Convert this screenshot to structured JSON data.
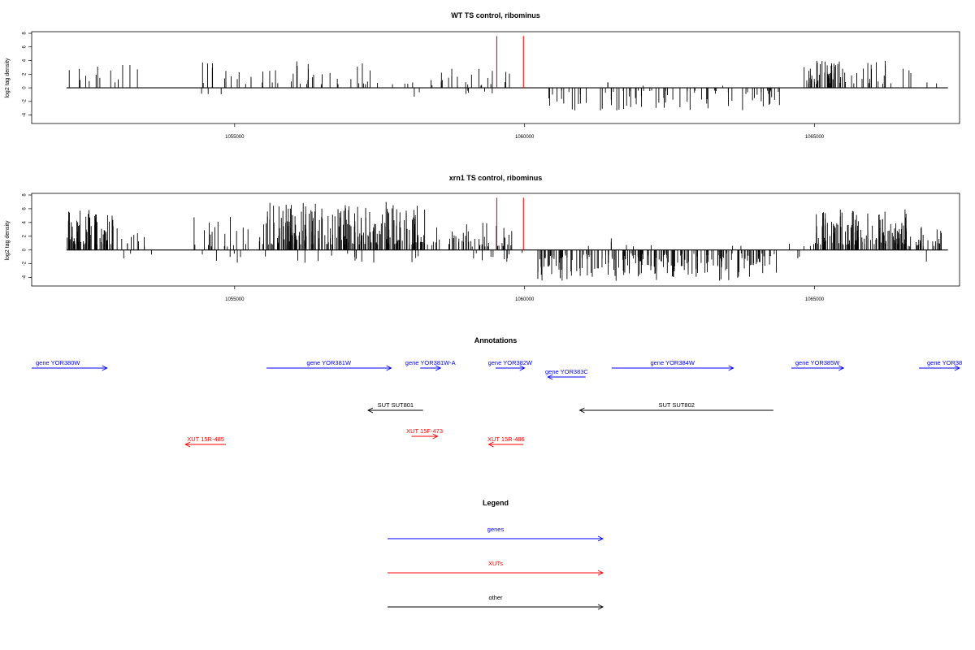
{
  "chart_data": [
    {
      "type": "bar",
      "title": "WT TS control, ribominus",
      "ylabel": "log2 tag density",
      "xlim": [
        1051500,
        1067500
      ],
      "ylim": [
        -5,
        8
      ],
      "yticks": [
        -4,
        -2,
        0,
        2,
        4,
        6,
        8
      ],
      "xticks": [
        1055000,
        1060000,
        1065000
      ],
      "xtick_labels": [
        "1055000",
        "1060000",
        "1065000"
      ],
      "bar_color": "#000000",
      "markers": [
        {
          "x": 1059520,
          "y": 7.6,
          "color": "#ff0000"
        },
        {
          "x": 1059980,
          "y": 7.6,
          "color": "#ff0000"
        }
      ],
      "segments": [
        {
          "from": 1052100,
          "to": 1053500,
          "n": 14,
          "sign": 1,
          "min": 0.5,
          "max": 3.8,
          "seed": 3
        },
        {
          "from": 1054400,
          "to": 1055300,
          "n": 14,
          "sign": 1,
          "min": 0.5,
          "max": 4.5,
          "seed": 5
        },
        {
          "from": 1054400,
          "to": 1055000,
          "n": 3,
          "sign": -1,
          "min": 0.4,
          "max": 1.0,
          "seed": 7
        },
        {
          "from": 1055400,
          "to": 1057800,
          "n": 32,
          "sign": 1,
          "min": 0.5,
          "max": 3.9,
          "seed": 11
        },
        {
          "from": 1057900,
          "to": 1058600,
          "n": 6,
          "sign": 1,
          "min": 0.3,
          "max": 2.0,
          "seed": 13
        },
        {
          "from": 1058000,
          "to": 1058400,
          "n": 2,
          "sign": -1,
          "min": 0.5,
          "max": 1.6,
          "seed": 17
        },
        {
          "from": 1058500,
          "to": 1059900,
          "n": 20,
          "sign": 1,
          "min": 0.3,
          "max": 2.9,
          "seed": 19
        },
        {
          "from": 1058800,
          "to": 1059700,
          "n": 5,
          "sign": -1,
          "min": 0.3,
          "max": 1.0,
          "seed": 23
        },
        {
          "from": 1060300,
          "to": 1064500,
          "n": 80,
          "sign": -1,
          "min": 0.4,
          "max": 3.5,
          "seed": 29
        },
        {
          "from": 1061300,
          "to": 1064300,
          "n": 4,
          "sign": 1,
          "min": 0.3,
          "max": 1.0,
          "seed": 31
        },
        {
          "from": 1064800,
          "to": 1066300,
          "n": 60,
          "sign": 1,
          "min": 0.6,
          "max": 4.0,
          "seed": 37
        },
        {
          "from": 1066300,
          "to": 1067200,
          "n": 6,
          "sign": 1,
          "min": 0.5,
          "max": 2.8,
          "seed": 41
        }
      ]
    },
    {
      "type": "bar",
      "title": "xrn1 TS control, ribominus",
      "ylabel": "log2 tag density",
      "xlim": [
        1051500,
        1067500
      ],
      "ylim": [
        -5,
        8
      ],
      "yticks": [
        -4,
        -2,
        0,
        2,
        4,
        6,
        8
      ],
      "xticks": [
        1055000,
        1060000,
        1065000
      ],
      "xtick_labels": [
        "1055000",
        "1060000",
        "1065000"
      ],
      "bar_color": "#000000",
      "markers": [
        {
          "x": 1059520,
          "y": 7.6,
          "color": "#ff0000"
        },
        {
          "x": 1059980,
          "y": 7.6,
          "color": "#ff0000"
        }
      ],
      "segments": [
        {
          "from": 1052100,
          "to": 1052900,
          "n": 70,
          "sign": 1,
          "min": 0.8,
          "max": 6.0,
          "seed": 43
        },
        {
          "from": 1052900,
          "to": 1053500,
          "n": 12,
          "sign": 1,
          "min": 0.5,
          "max": 3.5,
          "seed": 47
        },
        {
          "from": 1053000,
          "to": 1053800,
          "n": 3,
          "sign": -1,
          "min": 0.5,
          "max": 2.0,
          "seed": 53
        },
        {
          "from": 1054300,
          "to": 1055500,
          "n": 22,
          "sign": 1,
          "min": 0.5,
          "max": 5.0,
          "seed": 59
        },
        {
          "from": 1054400,
          "to": 1055500,
          "n": 6,
          "sign": -1,
          "min": 0.5,
          "max": 2.0,
          "seed": 61
        },
        {
          "from": 1055500,
          "to": 1058300,
          "n": 230,
          "sign": 1,
          "min": 0.8,
          "max": 7.0,
          "seed": 67
        },
        {
          "from": 1055500,
          "to": 1058200,
          "n": 14,
          "sign": -1,
          "min": 0.5,
          "max": 2.8,
          "seed": 71
        },
        {
          "from": 1058300,
          "to": 1059000,
          "n": 20,
          "sign": 1,
          "min": 0.5,
          "max": 3.8,
          "seed": 73
        },
        {
          "from": 1059000,
          "to": 1059800,
          "n": 30,
          "sign": 1,
          "min": 0.5,
          "max": 4.5,
          "seed": 79
        },
        {
          "from": 1059000,
          "to": 1060000,
          "n": 10,
          "sign": -1,
          "min": 0.3,
          "max": 2.0,
          "seed": 83
        },
        {
          "from": 1060200,
          "to": 1064400,
          "n": 210,
          "sign": -1,
          "min": 0.5,
          "max": 4.5,
          "seed": 89
        },
        {
          "from": 1061000,
          "to": 1064200,
          "n": 8,
          "sign": 1,
          "min": 0.5,
          "max": 2.5,
          "seed": 97
        },
        {
          "from": 1064400,
          "to": 1065000,
          "n": 4,
          "sign": 1,
          "min": 0.5,
          "max": 2.0,
          "seed": 101
        },
        {
          "from": 1064600,
          "to": 1065000,
          "n": 2,
          "sign": -1,
          "min": 0.5,
          "max": 2.0,
          "seed": 103
        },
        {
          "from": 1065000,
          "to": 1066600,
          "n": 130,
          "sign": 1,
          "min": 0.8,
          "max": 6.0,
          "seed": 107
        },
        {
          "from": 1066600,
          "to": 1067200,
          "n": 25,
          "sign": 1,
          "min": 0.5,
          "max": 3.5,
          "seed": 109
        },
        {
          "from": 1066900,
          "to": 1067000,
          "n": 1,
          "sign": -1,
          "min": 1.5,
          "max": 2.0,
          "seed": 113
        }
      ]
    }
  ],
  "annotations": {
    "title": "Annotations",
    "xlim": [
      1051500,
      1067500
    ],
    "features": [
      {
        "label": "gene YOR380W",
        "from": 1051500,
        "to": 1052800,
        "strand": "+",
        "row": 0,
        "color": "#0000ff"
      },
      {
        "label": "gene YOR381W",
        "from": 1055550,
        "to": 1057700,
        "strand": "+",
        "row": 0,
        "color": "#0000ff"
      },
      {
        "label": "gene YOR381W-A",
        "from": 1058200,
        "to": 1058550,
        "strand": "+",
        "row": 0,
        "color": "#0000ff"
      },
      {
        "label": "gene YOR382W",
        "from": 1059500,
        "to": 1060000,
        "strand": "+",
        "row": 0,
        "color": "#0000ff"
      },
      {
        "label": "gene YOR383C",
        "from": 1060400,
        "to": 1061050,
        "strand": "-",
        "row": 1,
        "color": "#0000ff"
      },
      {
        "label": "gene YOR384W",
        "from": 1061500,
        "to": 1063600,
        "strand": "+",
        "row": 0,
        "color": "#0000ff"
      },
      {
        "label": "gene YOR385W",
        "from": 1064600,
        "to": 1065500,
        "strand": "+",
        "row": 0,
        "color": "#0000ff"
      },
      {
        "label": "gene YOR38",
        "from": 1066800,
        "to": 1067500,
        "strand": "+",
        "row": 0,
        "color": "#0000ff"
      },
      {
        "label": "SUT SUT801",
        "from": 1057300,
        "to": 1058250,
        "strand": "-",
        "row": 2,
        "color": "#000000"
      },
      {
        "label": "SUT SUT802",
        "from": 1060950,
        "to": 1064290,
        "strand": "-",
        "row": 2,
        "color": "#000000"
      },
      {
        "label": "XUT 15R-485",
        "from": 1054150,
        "to": 1054850,
        "strand": "-",
        "row": 4,
        "color": "#ff0000"
      },
      {
        "label": "XUT 15F-473",
        "from": 1058050,
        "to": 1058500,
        "strand": "+",
        "row": 3,
        "color": "#ff0000"
      },
      {
        "label": "XUT 15R-486",
        "from": 1059380,
        "to": 1059980,
        "strand": "-",
        "row": 4,
        "color": "#ff0000"
      }
    ]
  },
  "legend": {
    "title": "Legend",
    "items": [
      {
        "label": "genes",
        "color": "#0000ff"
      },
      {
        "label": "XUTs",
        "color": "#ff0000"
      },
      {
        "label": "other",
        "color": "#000000"
      }
    ]
  }
}
